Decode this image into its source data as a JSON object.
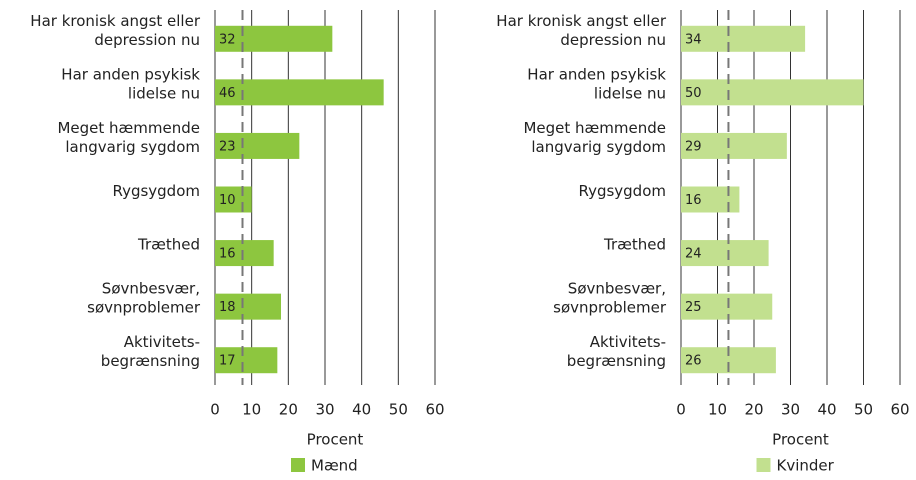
{
  "chart_data": [
    {
      "type": "bar",
      "orientation": "horizontal",
      "categories": [
        [
          "Har kronisk angst eller",
          "depression nu"
        ],
        [
          "Har anden psykisk",
          "lidelse nu"
        ],
        [
          "Meget hæmmende",
          "langvarig sygdom"
        ],
        [
          "Rygsygdom"
        ],
        [
          "Træthed"
        ],
        [
          "Søvnbesvær,",
          "søvnproblemer"
        ],
        [
          "Aktivitets-",
          "begrænsning"
        ]
      ],
      "series": [
        {
          "name": "Mænd",
          "color": "#8dc63f",
          "values": [
            32,
            46,
            23,
            10,
            16,
            18,
            17
          ]
        }
      ],
      "xlim": [
        0,
        60
      ],
      "xticks": [
        0,
        10,
        20,
        30,
        40,
        50,
        60
      ],
      "xlabel": "Procent",
      "grid": true,
      "reference_line": 7.5
    },
    {
      "type": "bar",
      "orientation": "horizontal",
      "categories": [
        [
          "Har kronisk angst eller",
          "depression nu"
        ],
        [
          "Har anden psykisk",
          "lidelse nu"
        ],
        [
          "Meget hæmmende",
          "langvarig sygdom"
        ],
        [
          "Rygsygdom"
        ],
        [
          "Træthed"
        ],
        [
          "Søvnbesvær,",
          "søvnproblemer"
        ],
        [
          "Aktivitets-",
          "begrænsning"
        ]
      ],
      "series": [
        {
          "name": "Kvinder",
          "color": "#c2e08f",
          "values": [
            34,
            50,
            29,
            16,
            24,
            25,
            26
          ]
        }
      ],
      "xlim": [
        0,
        60
      ],
      "xticks": [
        0,
        10,
        20,
        30,
        40,
        50,
        60
      ],
      "xlabel": "Procent",
      "grid": true,
      "reference_line": 13
    }
  ]
}
